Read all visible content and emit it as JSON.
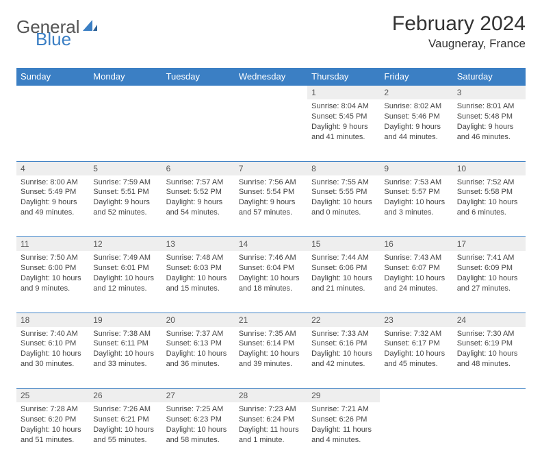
{
  "colors": {
    "brand_blue": "#3b7fc4",
    "header_text": "#333333",
    "logo_gray": "#555555",
    "daynum_bg": "#eeeeee",
    "cell_text": "#444444",
    "white": "#ffffff"
  },
  "logo": {
    "part1": "General",
    "part2": "Blue"
  },
  "title": "February 2024",
  "location": "Vaugneray, France",
  "day_headers": [
    "Sunday",
    "Monday",
    "Tuesday",
    "Wednesday",
    "Thursday",
    "Friday",
    "Saturday"
  ],
  "weeks": [
    {
      "nums": [
        "",
        "",
        "",
        "",
        "1",
        "2",
        "3"
      ],
      "cells": [
        null,
        null,
        null,
        null,
        {
          "sunrise": "Sunrise: 8:04 AM",
          "sunset": "Sunset: 5:45 PM",
          "daylight": "Daylight: 9 hours and 41 minutes."
        },
        {
          "sunrise": "Sunrise: 8:02 AM",
          "sunset": "Sunset: 5:46 PM",
          "daylight": "Daylight: 9 hours and 44 minutes."
        },
        {
          "sunrise": "Sunrise: 8:01 AM",
          "sunset": "Sunset: 5:48 PM",
          "daylight": "Daylight: 9 hours and 46 minutes."
        }
      ]
    },
    {
      "nums": [
        "4",
        "5",
        "6",
        "7",
        "8",
        "9",
        "10"
      ],
      "cells": [
        {
          "sunrise": "Sunrise: 8:00 AM",
          "sunset": "Sunset: 5:49 PM",
          "daylight": "Daylight: 9 hours and 49 minutes."
        },
        {
          "sunrise": "Sunrise: 7:59 AM",
          "sunset": "Sunset: 5:51 PM",
          "daylight": "Daylight: 9 hours and 52 minutes."
        },
        {
          "sunrise": "Sunrise: 7:57 AM",
          "sunset": "Sunset: 5:52 PM",
          "daylight": "Daylight: 9 hours and 54 minutes."
        },
        {
          "sunrise": "Sunrise: 7:56 AM",
          "sunset": "Sunset: 5:54 PM",
          "daylight": "Daylight: 9 hours and 57 minutes."
        },
        {
          "sunrise": "Sunrise: 7:55 AM",
          "sunset": "Sunset: 5:55 PM",
          "daylight": "Daylight: 10 hours and 0 minutes."
        },
        {
          "sunrise": "Sunrise: 7:53 AM",
          "sunset": "Sunset: 5:57 PM",
          "daylight": "Daylight: 10 hours and 3 minutes."
        },
        {
          "sunrise": "Sunrise: 7:52 AM",
          "sunset": "Sunset: 5:58 PM",
          "daylight": "Daylight: 10 hours and 6 minutes."
        }
      ]
    },
    {
      "nums": [
        "11",
        "12",
        "13",
        "14",
        "15",
        "16",
        "17"
      ],
      "cells": [
        {
          "sunrise": "Sunrise: 7:50 AM",
          "sunset": "Sunset: 6:00 PM",
          "daylight": "Daylight: 10 hours and 9 minutes."
        },
        {
          "sunrise": "Sunrise: 7:49 AM",
          "sunset": "Sunset: 6:01 PM",
          "daylight": "Daylight: 10 hours and 12 minutes."
        },
        {
          "sunrise": "Sunrise: 7:48 AM",
          "sunset": "Sunset: 6:03 PM",
          "daylight": "Daylight: 10 hours and 15 minutes."
        },
        {
          "sunrise": "Sunrise: 7:46 AM",
          "sunset": "Sunset: 6:04 PM",
          "daylight": "Daylight: 10 hours and 18 minutes."
        },
        {
          "sunrise": "Sunrise: 7:44 AM",
          "sunset": "Sunset: 6:06 PM",
          "daylight": "Daylight: 10 hours and 21 minutes."
        },
        {
          "sunrise": "Sunrise: 7:43 AM",
          "sunset": "Sunset: 6:07 PM",
          "daylight": "Daylight: 10 hours and 24 minutes."
        },
        {
          "sunrise": "Sunrise: 7:41 AM",
          "sunset": "Sunset: 6:09 PM",
          "daylight": "Daylight: 10 hours and 27 minutes."
        }
      ]
    },
    {
      "nums": [
        "18",
        "19",
        "20",
        "21",
        "22",
        "23",
        "24"
      ],
      "cells": [
        {
          "sunrise": "Sunrise: 7:40 AM",
          "sunset": "Sunset: 6:10 PM",
          "daylight": "Daylight: 10 hours and 30 minutes."
        },
        {
          "sunrise": "Sunrise: 7:38 AM",
          "sunset": "Sunset: 6:11 PM",
          "daylight": "Daylight: 10 hours and 33 minutes."
        },
        {
          "sunrise": "Sunrise: 7:37 AM",
          "sunset": "Sunset: 6:13 PM",
          "daylight": "Daylight: 10 hours and 36 minutes."
        },
        {
          "sunrise": "Sunrise: 7:35 AM",
          "sunset": "Sunset: 6:14 PM",
          "daylight": "Daylight: 10 hours and 39 minutes."
        },
        {
          "sunrise": "Sunrise: 7:33 AM",
          "sunset": "Sunset: 6:16 PM",
          "daylight": "Daylight: 10 hours and 42 minutes."
        },
        {
          "sunrise": "Sunrise: 7:32 AM",
          "sunset": "Sunset: 6:17 PM",
          "daylight": "Daylight: 10 hours and 45 minutes."
        },
        {
          "sunrise": "Sunrise: 7:30 AM",
          "sunset": "Sunset: 6:19 PM",
          "daylight": "Daylight: 10 hours and 48 minutes."
        }
      ]
    },
    {
      "nums": [
        "25",
        "26",
        "27",
        "28",
        "29",
        "",
        ""
      ],
      "cells": [
        {
          "sunrise": "Sunrise: 7:28 AM",
          "sunset": "Sunset: 6:20 PM",
          "daylight": "Daylight: 10 hours and 51 minutes."
        },
        {
          "sunrise": "Sunrise: 7:26 AM",
          "sunset": "Sunset: 6:21 PM",
          "daylight": "Daylight: 10 hours and 55 minutes."
        },
        {
          "sunrise": "Sunrise: 7:25 AM",
          "sunset": "Sunset: 6:23 PM",
          "daylight": "Daylight: 10 hours and 58 minutes."
        },
        {
          "sunrise": "Sunrise: 7:23 AM",
          "sunset": "Sunset: 6:24 PM",
          "daylight": "Daylight: 11 hours and 1 minute."
        },
        {
          "sunrise": "Sunrise: 7:21 AM",
          "sunset": "Sunset: 6:26 PM",
          "daylight": "Daylight: 11 hours and 4 minutes."
        },
        null,
        null
      ]
    }
  ]
}
